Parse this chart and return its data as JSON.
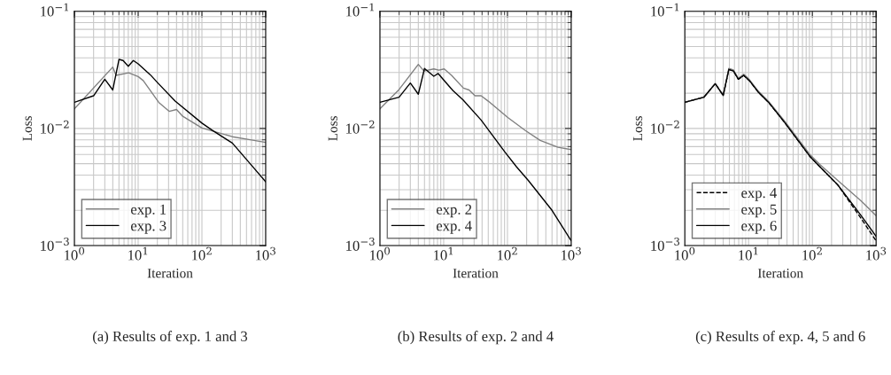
{
  "chart_data": [
    {
      "type": "line",
      "xlabel": "Iteration",
      "ylabel": "Loss",
      "log": "xy",
      "grid": true,
      "legend": "bottom left",
      "xlim": [
        1,
        1000
      ],
      "ylim": [
        0.001,
        0.1
      ],
      "xticks": [
        {
          "value": 1,
          "label": "10$^{0}$"
        },
        {
          "value": 10,
          "label": "10$^{1}$"
        },
        {
          "value": 100,
          "label": "10$^{2}$"
        },
        {
          "value": 1000,
          "label": "10$^{3}$"
        }
      ],
      "yticks": [
        {
          "value": 0.001,
          "label": "10$^{−3}$"
        },
        {
          "value": 0.01,
          "label": "10$^{−2}$"
        },
        {
          "value": 0.1,
          "label": "10$^{−1}$"
        }
      ],
      "annotations": [
        "(a) Results of exp. 1 and 3"
      ],
      "series": [
        {
          "name": "exp. 1",
          "color": "#808080",
          "x": [
            1,
            4,
            4.5,
            7.1,
            10,
            12,
            21,
            30.6,
            40,
            50,
            100,
            300,
            570,
            1000
          ],
          "values": [
            0.0147,
            0.0334,
            0.0284,
            0.0298,
            0.0277,
            0.0256,
            0.0167,
            0.014,
            0.0145,
            0.0127,
            0.0101,
            0.0085,
            0.008,
            0.0076
          ]
        },
        {
          "name": "exp. 3",
          "color": "#000000",
          "x": [
            1,
            2,
            3,
            4,
            5,
            5.8,
            7,
            8.4,
            10,
            15.4,
            21,
            38,
            100,
            143,
            300,
            570,
            1000
          ],
          "values": [
            0.0167,
            0.019,
            0.0263,
            0.0213,
            0.0388,
            0.038,
            0.0339,
            0.038,
            0.0356,
            0.0288,
            0.024,
            0.0171,
            0.0111,
            0.0097,
            0.0075,
            0.005,
            0.0035
          ]
        }
      ]
    },
    {
      "type": "line",
      "xlabel": "Iteration",
      "ylabel": "Loss",
      "log": "xy",
      "grid": true,
      "legend": "bottom left",
      "xlim": [
        1,
        1000
      ],
      "ylim": [
        0.001,
        0.1
      ],
      "xticks": [
        {
          "value": 1,
          "label": "10$^{0}$"
        },
        {
          "value": 10,
          "label": "10$^{1}$"
        },
        {
          "value": 100,
          "label": "10$^{2}$"
        },
        {
          "value": 1000,
          "label": "10$^{3}$"
        }
      ],
      "yticks": [
        {
          "value": 0.001,
          "label": "10$^{−3}$"
        },
        {
          "value": 0.01,
          "label": "10$^{−2}$"
        },
        {
          "value": 0.1,
          "label": "10$^{−1}$"
        }
      ],
      "annotations": [
        "(b) Results of exp. 2 and 4"
      ],
      "series": [
        {
          "name": "exp. 2",
          "color": "#808080",
          "x": [
            1,
            2,
            4,
            4.9,
            7,
            8.4,
            10.2,
            13.3,
            20.4,
            25,
            31,
            38.6,
            50,
            101,
            191,
            326,
            620,
            1000
          ],
          "values": [
            0.0147,
            0.0215,
            0.0352,
            0.0309,
            0.0322,
            0.0314,
            0.0322,
            0.0284,
            0.0221,
            0.0213,
            0.019,
            0.019,
            0.0171,
            0.0124,
            0.0096,
            0.0079,
            0.0069,
            0.0066
          ]
        },
        {
          "name": "exp. 4",
          "color": "#000000",
          "x": [
            1,
            2,
            3,
            4,
            5,
            7,
            8.2,
            14,
            20,
            38.6,
            91,
            139,
            212,
            500,
            1000
          ],
          "values": [
            0.0167,
            0.0185,
            0.0244,
            0.0196,
            0.0325,
            0.0279,
            0.0294,
            0.021,
            0.0176,
            0.0118,
            0.0063,
            0.0047,
            0.0036,
            0.002,
            0.0011
          ]
        }
      ]
    },
    {
      "type": "line",
      "xlabel": "Iteration",
      "ylabel": "Loss",
      "log": "xy",
      "grid": true,
      "legend": "bottom left",
      "xlim": [
        1,
        1000
      ],
      "ylim": [
        0.001,
        0.1
      ],
      "xticks": [
        {
          "value": 1,
          "label": "10$^{0}$"
        },
        {
          "value": 10,
          "label": "10$^{1}$"
        },
        {
          "value": 100,
          "label": "10$^{2}$"
        },
        {
          "value": 1000,
          "label": "10$^{3}$"
        }
      ],
      "yticks": [
        {
          "value": 0.001,
          "label": "10$^{−3}$"
        },
        {
          "value": 0.01,
          "label": "10$^{−2}$"
        },
        {
          "value": 0.1,
          "label": "10$^{−1}$"
        }
      ],
      "annotations": [
        "(c) Results of exp. 4, 5 and 6"
      ],
      "series": [
        {
          "name": "exp. 4",
          "color": "#000000",
          "line_style": "dashed",
          "x": [
            1,
            2,
            3,
            4,
            4.9,
            5.8,
            6.9,
            8.4,
            10.3,
            14.2,
            20.6,
            37,
            91,
            132,
            250,
            584,
            1000
          ],
          "values": [
            0.0167,
            0.0185,
            0.0241,
            0.0191,
            0.0319,
            0.0309,
            0.0263,
            0.0284,
            0.0256,
            0.0204,
            0.0167,
            0.0112,
            0.0058,
            0.0047,
            0.0033,
            0.0017,
            0.0011
          ]
        },
        {
          "name": "exp. 5",
          "color": "#808080",
          "x": [
            1,
            2,
            3,
            4,
            4.9,
            5.8,
            6.9,
            8.4,
            10.3,
            14.2,
            20.6,
            37,
            91,
            132,
            250,
            584,
            1000
          ],
          "values": [
            0.0167,
            0.0185,
            0.0241,
            0.0191,
            0.0325,
            0.0315,
            0.0268,
            0.029,
            0.0261,
            0.0208,
            0.017,
            0.0115,
            0.006,
            0.0049,
            0.0036,
            0.0024,
            0.0018
          ]
        },
        {
          "name": "exp. 6",
          "color": "#000000",
          "x": [
            1,
            2,
            3,
            4,
            4.9,
            5.8,
            6.9,
            8.4,
            10.3,
            14.2,
            20.6,
            37,
            91,
            132,
            250,
            584,
            1000
          ],
          "values": [
            0.0167,
            0.0185,
            0.0241,
            0.0191,
            0.0319,
            0.0309,
            0.0263,
            0.0284,
            0.0256,
            0.0204,
            0.0167,
            0.0112,
            0.0058,
            0.0047,
            0.0033,
            0.0018,
            0.0012
          ]
        }
      ]
    }
  ]
}
